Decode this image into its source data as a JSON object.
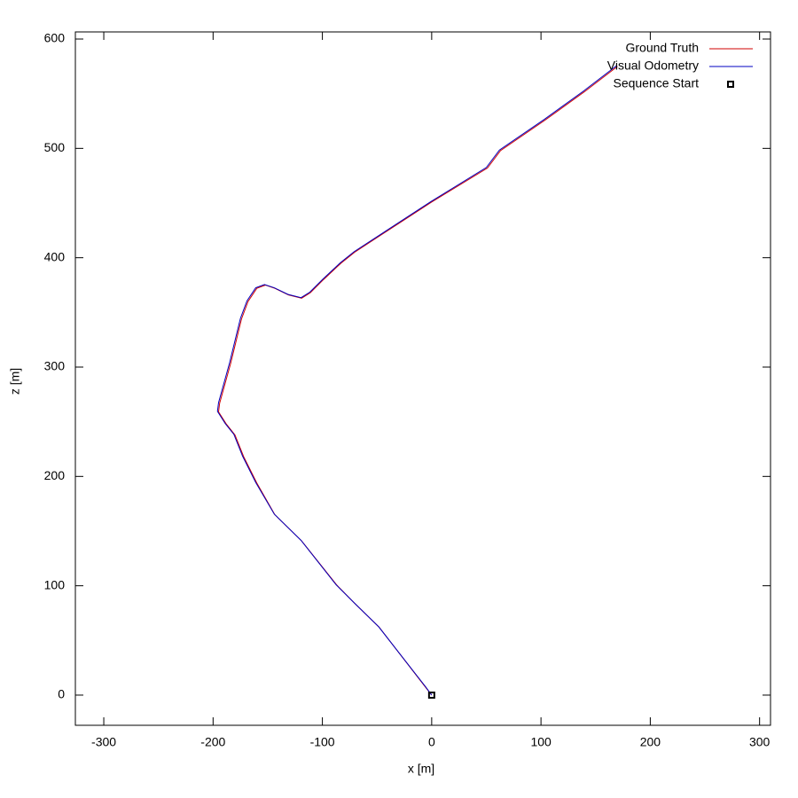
{
  "chart_data": {
    "type": "line",
    "x_label": "x [m]",
    "y_label": "z [m]",
    "xlim": [
      -326,
      310
    ],
    "ylim": [
      -27.6,
      606.5
    ],
    "xticks": [
      -300,
      -200,
      -100,
      0,
      100,
      200,
      300
    ],
    "yticks": [
      0,
      100,
      200,
      300,
      400,
      500,
      600
    ],
    "grid": false,
    "legend": "top-right",
    "series": [
      {
        "name": "Ground Truth",
        "color": "#d00000",
        "style": "line",
        "x": [
          0,
          -5.7,
          -48,
          -70.5,
          -86.7,
          -119,
          -143.5,
          -160,
          -172,
          -180,
          -188,
          -195,
          -194,
          -184,
          -174,
          -168,
          -160,
          -152,
          -143.5,
          -131,
          -119,
          -111,
          -99,
          -83,
          -70.5,
          -46,
          0,
          51,
          63,
          104,
          140,
          170
        ],
        "values": [
          0,
          7.3,
          62,
          84,
          100.5,
          141,
          165,
          194,
          218,
          238,
          248,
          259,
          267,
          303,
          344,
          360,
          372,
          375,
          372,
          366,
          363,
          368,
          380,
          395,
          405,
          421,
          451,
          482,
          498,
          526,
          552,
          575
        ]
      },
      {
        "name": "Visual Odometry",
        "color": "#0000c0",
        "style": "line",
        "x": [
          0,
          -5.5,
          -48.5,
          -71,
          -87.5,
          -119.5,
          -144,
          -161,
          -173,
          -181,
          -189,
          -196,
          -195,
          -185,
          -175,
          -169,
          -161,
          -153,
          -144,
          -131.5,
          -119.5,
          -111.5,
          -99.5,
          -83.5,
          -71,
          -46.5,
          -0.5,
          50,
          62,
          103,
          139,
          169
        ],
        "values": [
          0,
          7.5,
          62.5,
          84.5,
          101,
          141.5,
          165.5,
          194.5,
          218.5,
          238.5,
          248.5,
          259.5,
          267.5,
          303.5,
          344.5,
          360.5,
          372.5,
          375.5,
          372.5,
          366.5,
          363.5,
          368.5,
          380.5,
          395.5,
          405.5,
          421.5,
          451.5,
          482.5,
          498.5,
          526.5,
          552.5,
          575.5
        ]
      },
      {
        "name": "Sequence Start",
        "color": "#000000",
        "style": "points",
        "x": [
          0
        ],
        "values": [
          0
        ]
      }
    ]
  }
}
